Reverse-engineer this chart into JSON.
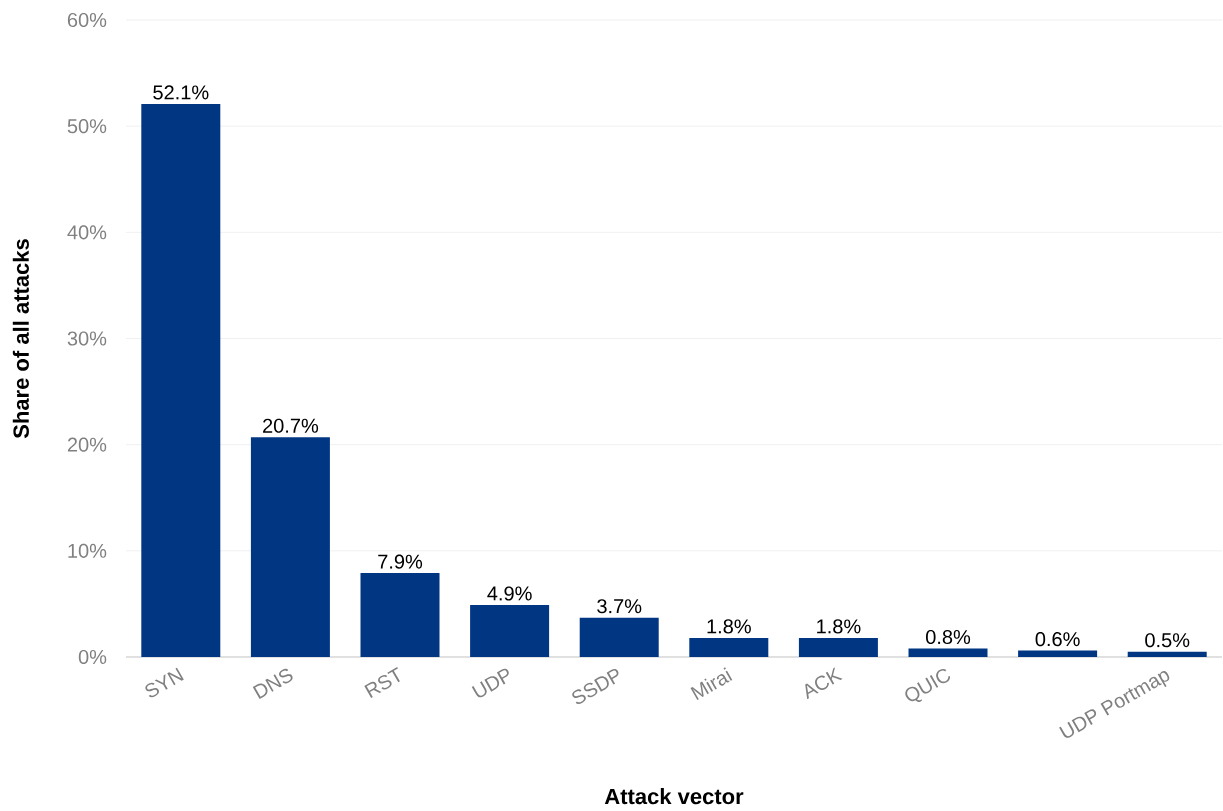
{
  "chart_data": {
    "type": "bar",
    "xlabel": "Attack vector",
    "ylabel": "Share of all attacks",
    "categories": [
      "SYN",
      "DNS",
      "RST",
      "UDP",
      "SSDP",
      "Mirai",
      "ACK",
      "QUIC",
      null,
      "UDP Portmap"
    ],
    "values": [
      52.1,
      20.7,
      7.9,
      4.9,
      3.7,
      1.8,
      1.8,
      0.8,
      0.6,
      0.5
    ],
    "value_labels": [
      "52.1%",
      "20.7%",
      "7.9%",
      "4.9%",
      "3.7%",
      "1.8%",
      "1.8%",
      "0.8%",
      "0.6%",
      "0.5%"
    ],
    "color": "#003682",
    "ylim": [
      0,
      60
    ],
    "yticks": [
      {
        "value": 0,
        "label": "0%"
      },
      {
        "value": 10,
        "label": "10%"
      },
      {
        "value": 20,
        "label": "20%"
      },
      {
        "value": 30,
        "label": "30%"
      },
      {
        "value": 40,
        "label": "40%"
      },
      {
        "value": 50,
        "label": "50%"
      },
      {
        "value": 60,
        "label": "60%"
      }
    ],
    "grid": "y"
  }
}
